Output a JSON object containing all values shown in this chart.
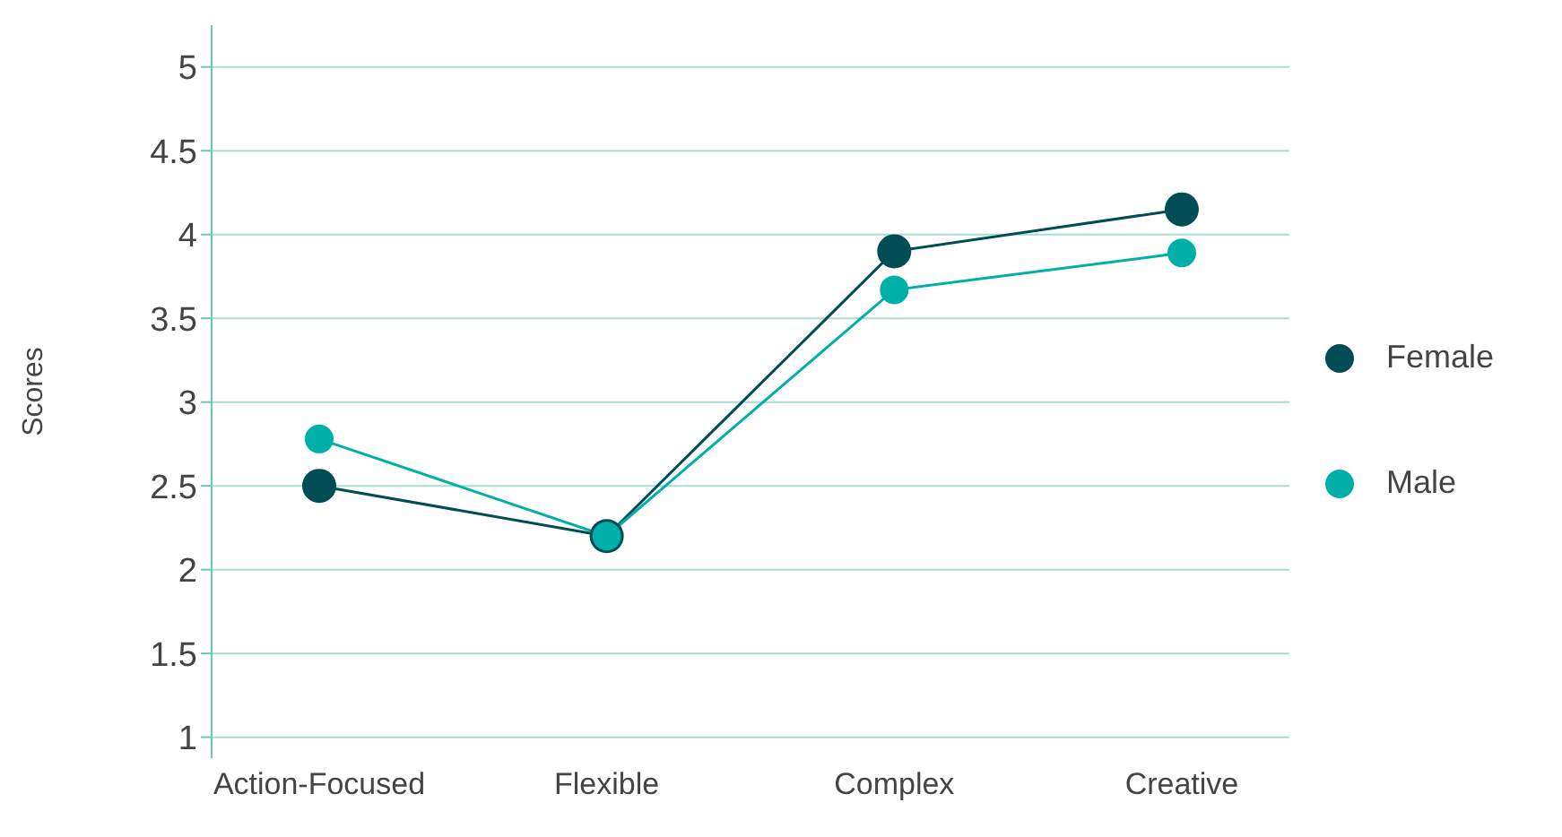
{
  "chart_data": {
    "type": "line",
    "ylabel": "Scores",
    "categories": [
      "Action-Focused",
      "Flexible",
      "Complex",
      "Creative"
    ],
    "series": [
      {
        "name": "Female",
        "color": "#004d56",
        "values": [
          2.5,
          2.2,
          3.9,
          4.15
        ]
      },
      {
        "name": "Male",
        "color": "#00b0a8",
        "values": [
          2.78,
          2.2,
          3.67,
          3.89
        ]
      }
    ],
    "ylim": [
      0.875,
      5.25
    ],
    "yticks": [
      1,
      1.5,
      2,
      2.5,
      3,
      3.5,
      4,
      4.5,
      5
    ],
    "grid": "y",
    "legend": "right",
    "marker": "circle",
    "line_style": "solid"
  }
}
